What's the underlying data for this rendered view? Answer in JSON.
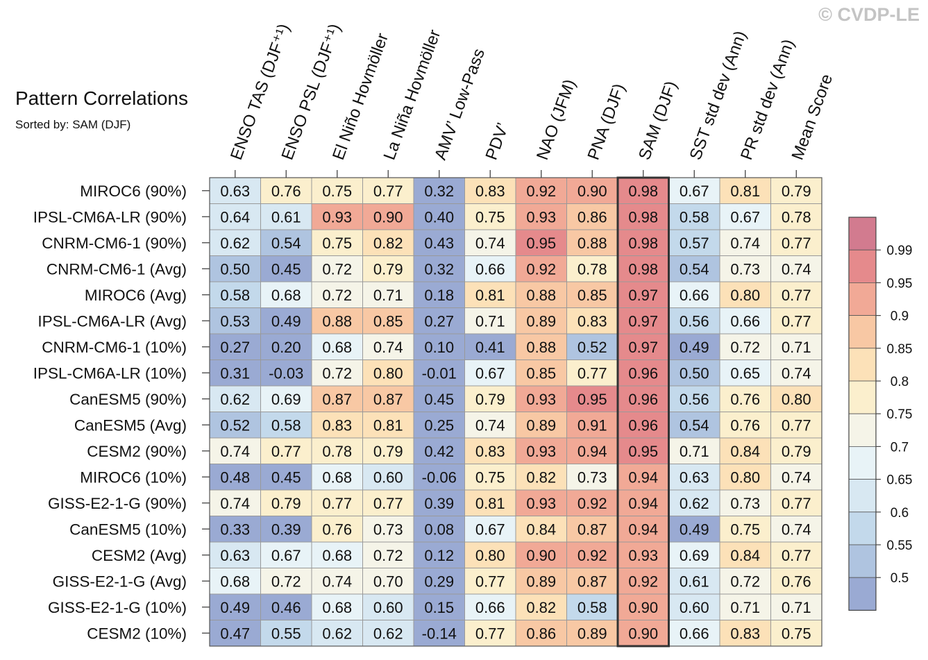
{
  "title": "Pattern Correlations",
  "subtitle": "Sorted by: SAM (DJF)",
  "watermark": "© CVDP-LE",
  "chart_data": {
    "type": "heatmap",
    "columns": [
      "ENSO TAS (DJF⁺¹)",
      "ENSO PSL (DJF⁺¹)",
      "El Niño Hovmöller",
      "La Niña Hovmöller",
      "AMV’ Low-Pass",
      "PDV’",
      "NAO (JFM)",
      "PNA (DJF)",
      "SAM (DJF)",
      "SST std dev (Ann)",
      "PR std dev (Ann)",
      "Mean Score"
    ],
    "rows": [
      "MIROC6 (90%)",
      "IPSL-CM6A-LR (90%)",
      "CNRM-CM6-1 (90%)",
      "CNRM-CM6-1 (Avg)",
      "MIROC6 (Avg)",
      "IPSL-CM6A-LR (Avg)",
      "CNRM-CM6-1 (10%)",
      "IPSL-CM6A-LR (10%)",
      "CanESM5 (90%)",
      "CanESM5 (Avg)",
      "CESM2 (90%)",
      "MIROC6 (10%)",
      "GISS-E2-1-G (90%)",
      "CanESM5 (10%)",
      "CESM2 (Avg)",
      "GISS-E2-1-G (Avg)",
      "GISS-E2-1-G (10%)",
      "CESM2 (10%)"
    ],
    "values": [
      [
        "0.63",
        "0.76",
        "0.75",
        "0.77",
        "0.32",
        "0.83",
        "0.92",
        "0.90",
        "0.98",
        "0.67",
        "0.81",
        "0.79"
      ],
      [
        "0.64",
        "0.61",
        "0.93",
        "0.90",
        "0.40",
        "0.75",
        "0.93",
        "0.86",
        "0.98",
        "0.58",
        "0.67",
        "0.78"
      ],
      [
        "0.62",
        "0.54",
        "0.75",
        "0.82",
        "0.43",
        "0.74",
        "0.95",
        "0.88",
        "0.98",
        "0.57",
        "0.74",
        "0.77"
      ],
      [
        "0.50",
        "0.45",
        "0.72",
        "0.79",
        "0.32",
        "0.66",
        "0.92",
        "0.78",
        "0.98",
        "0.54",
        "0.73",
        "0.74"
      ],
      [
        "0.58",
        "0.68",
        "0.72",
        "0.71",
        "0.18",
        "0.81",
        "0.88",
        "0.85",
        "0.97",
        "0.66",
        "0.80",
        "0.77"
      ],
      [
        "0.53",
        "0.49",
        "0.88",
        "0.85",
        "0.27",
        "0.71",
        "0.89",
        "0.83",
        "0.97",
        "0.56",
        "0.66",
        "0.77"
      ],
      [
        "0.27",
        "0.20",
        "0.68",
        "0.74",
        "0.10",
        "0.41",
        "0.88",
        "0.52",
        "0.97",
        "0.49",
        "0.72",
        "0.71"
      ],
      [
        "0.31",
        "-0.03",
        "0.72",
        "0.80",
        "-0.01",
        "0.67",
        "0.85",
        "0.77",
        "0.96",
        "0.50",
        "0.65",
        "0.74"
      ],
      [
        "0.62",
        "0.69",
        "0.87",
        "0.87",
        "0.45",
        "0.79",
        "0.93",
        "0.95",
        "0.96",
        "0.56",
        "0.76",
        "0.80"
      ],
      [
        "0.52",
        "0.58",
        "0.83",
        "0.81",
        "0.25",
        "0.74",
        "0.89",
        "0.91",
        "0.96",
        "0.54",
        "0.76",
        "0.77"
      ],
      [
        "0.74",
        "0.77",
        "0.78",
        "0.79",
        "0.42",
        "0.83",
        "0.93",
        "0.94",
        "0.95",
        "0.71",
        "0.84",
        "0.79"
      ],
      [
        "0.48",
        "0.45",
        "0.68",
        "0.60",
        "-0.06",
        "0.75",
        "0.82",
        "0.73",
        "0.94",
        "0.63",
        "0.80",
        "0.74"
      ],
      [
        "0.74",
        "0.79",
        "0.77",
        "0.77",
        "0.39",
        "0.81",
        "0.93",
        "0.92",
        "0.94",
        "0.62",
        "0.73",
        "0.77"
      ],
      [
        "0.33",
        "0.39",
        "0.76",
        "0.73",
        "0.08",
        "0.67",
        "0.84",
        "0.87",
        "0.94",
        "0.49",
        "0.75",
        "0.74"
      ],
      [
        "0.63",
        "0.67",
        "0.68",
        "0.72",
        "0.12",
        "0.80",
        "0.90",
        "0.92",
        "0.93",
        "0.69",
        "0.84",
        "0.77"
      ],
      [
        "0.68",
        "0.72",
        "0.74",
        "0.70",
        "0.29",
        "0.77",
        "0.89",
        "0.87",
        "0.92",
        "0.61",
        "0.72",
        "0.76"
      ],
      [
        "0.49",
        "0.46",
        "0.68",
        "0.60",
        "0.15",
        "0.66",
        "0.82",
        "0.58",
        "0.90",
        "0.60",
        "0.71",
        "0.71"
      ],
      [
        "0.47",
        "0.55",
        "0.62",
        "0.62",
        "-0.14",
        "0.77",
        "0.86",
        "0.89",
        "0.90",
        "0.66",
        "0.83",
        "0.75"
      ]
    ],
    "sorted_by_column": "SAM (DJF)",
    "highlight_column": 8,
    "colorbar": {
      "tick_labels": [
        "0.5",
        "0.55",
        "0.6",
        "0.65",
        "0.7",
        "0.75",
        "0.8",
        "0.85",
        "0.9",
        "0.95",
        "0.99"
      ],
      "colors": [
        "#9aaad3",
        "#afc4e0",
        "#c3d9eb",
        "#d8e8f2",
        "#e8f3f7",
        "#f5f4e8",
        "#fbefcd",
        "#fce1b8",
        "#f8c8a4",
        "#f1a996",
        "#e58a8c",
        "#d27b8f"
      ]
    },
    "legend_position": "right"
  }
}
